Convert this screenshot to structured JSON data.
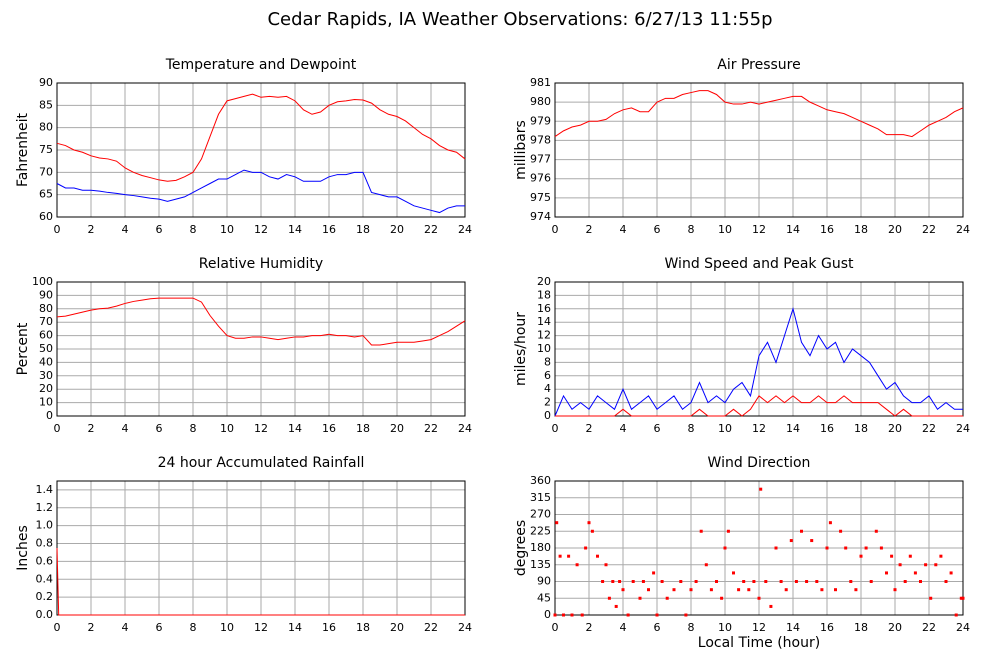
{
  "title": "Cedar Rapids, IA Weather Observations: 6/27/13 11:55p",
  "chart_data": [
    {
      "type": "line",
      "title": "Temperature and Dewpoint",
      "ylabel": "Fahrenheit",
      "grid": true,
      "x": [
        0,
        0.5,
        1,
        1.5,
        2,
        2.5,
        3,
        3.5,
        4,
        4.5,
        5,
        5.5,
        6,
        6.5,
        7,
        7.5,
        8,
        8.5,
        9,
        9.5,
        10,
        10.5,
        11,
        11.5,
        12,
        12.5,
        13,
        13.5,
        14,
        14.5,
        15,
        15.5,
        16,
        16.5,
        17,
        17.5,
        18,
        18.5,
        19,
        19.5,
        20,
        20.5,
        21,
        21.5,
        22,
        22.5,
        23,
        23.5,
        24
      ],
      "series": [
        {
          "color": "#ff0000",
          "values": [
            76.5,
            76,
            75,
            74.5,
            73.7,
            73.2,
            73,
            72.5,
            71,
            70,
            69.3,
            68.8,
            68.3,
            68,
            68.2,
            69,
            70,
            73,
            78,
            83,
            86,
            86.5,
            87,
            87.5,
            86.8,
            87,
            86.8,
            87,
            86,
            84,
            83,
            83.5,
            85,
            85.8,
            86,
            86.3,
            86.2,
            85.5,
            84,
            83,
            82.5,
            81.5,
            80,
            78.5,
            77.5,
            76,
            75,
            74.5,
            73
          ]
        },
        {
          "color": "#0000ff",
          "values": [
            67.5,
            66.5,
            66.5,
            66,
            66,
            65.8,
            65.5,
            65.3,
            65,
            64.8,
            64.5,
            64.2,
            64,
            63.5,
            64,
            64.5,
            65.5,
            66.5,
            67.5,
            68.5,
            68.5,
            69.5,
            70.5,
            70,
            70,
            69,
            68.5,
            69.5,
            69,
            68,
            68,
            68,
            69,
            69.5,
            69.5,
            70,
            70,
            65.5,
            65,
            64.5,
            64.5,
            63.5,
            62.5,
            62,
            61.5,
            61,
            62,
            62.5,
            62.5
          ]
        }
      ],
      "xlim": [
        0,
        24
      ],
      "xticks": [
        0,
        2,
        4,
        6,
        8,
        10,
        12,
        14,
        16,
        18,
        20,
        22,
        24
      ],
      "ylim": [
        60,
        90
      ],
      "yticks": [
        60,
        65,
        70,
        75,
        80,
        85,
        90
      ]
    },
    {
      "type": "line",
      "title": "Air Pressure",
      "ylabel": "millibars",
      "grid": true,
      "x": [
        0,
        0.5,
        1,
        1.5,
        2,
        2.5,
        3,
        3.5,
        4,
        4.5,
        5,
        5.5,
        6,
        6.5,
        7,
        7.5,
        8,
        8.5,
        9,
        9.5,
        10,
        10.5,
        11,
        11.5,
        12,
        12.5,
        13,
        13.5,
        14,
        14.5,
        15,
        15.5,
        16,
        16.5,
        17,
        17.5,
        18,
        18.5,
        19,
        19.5,
        20,
        20.5,
        21,
        21.5,
        22,
        22.5,
        23,
        23.5,
        24
      ],
      "series": [
        {
          "color": "#ff0000",
          "values": [
            978.2,
            978.5,
            978.7,
            978.8,
            979,
            979,
            979.1,
            979.4,
            979.6,
            979.7,
            979.5,
            979.5,
            980,
            980.2,
            980.2,
            980.4,
            980.5,
            980.6,
            980.6,
            980.4,
            980,
            979.9,
            979.9,
            980,
            979.9,
            980,
            980.1,
            980.2,
            980.3,
            980.3,
            980,
            979.8,
            979.6,
            979.5,
            979.4,
            979.2,
            979,
            978.8,
            978.6,
            978.3,
            978.3,
            978.3,
            978.2,
            978.5,
            978.8,
            979,
            979.2,
            979.5,
            979.7
          ]
        }
      ],
      "xlim": [
        0,
        24
      ],
      "xticks": [
        0,
        2,
        4,
        6,
        8,
        10,
        12,
        14,
        16,
        18,
        20,
        22,
        24
      ],
      "ylim": [
        974,
        981
      ],
      "yticks": [
        974,
        975,
        976,
        977,
        978,
        979,
        980,
        981
      ]
    },
    {
      "type": "line",
      "title": "Relative Humidity",
      "ylabel": "Percent",
      "grid": true,
      "x": [
        0,
        0.5,
        1,
        1.5,
        2,
        2.5,
        3,
        3.5,
        4,
        4.5,
        5,
        5.5,
        6,
        6.5,
        7,
        7.5,
        8,
        8.5,
        9,
        9.5,
        10,
        10.5,
        11,
        11.5,
        12,
        12.5,
        13,
        13.5,
        14,
        14.5,
        15,
        15.5,
        16,
        16.5,
        17,
        17.5,
        18,
        18.5,
        19,
        19.5,
        20,
        20.5,
        21,
        21.5,
        22,
        22.5,
        23,
        23.5,
        24
      ],
      "series": [
        {
          "color": "#ff0000",
          "values": [
            74,
            74.5,
            76,
            77.5,
            79,
            80,
            80.5,
            82,
            84,
            85.5,
            86.5,
            87.5,
            88,
            88,
            88,
            88,
            88,
            85,
            75,
            67,
            60,
            58,
            58,
            59,
            59,
            58,
            57,
            58,
            59,
            59,
            60,
            60,
            61,
            60,
            60,
            59,
            60,
            53,
            53,
            54,
            55,
            55,
            55,
            56,
            57,
            60,
            63,
            67,
            71
          ]
        }
      ],
      "xlim": [
        0,
        24
      ],
      "xticks": [
        0,
        2,
        4,
        6,
        8,
        10,
        12,
        14,
        16,
        18,
        20,
        22,
        24
      ],
      "ylim": [
        0,
        100
      ],
      "yticks": [
        0,
        10,
        20,
        30,
        40,
        50,
        60,
        70,
        80,
        90,
        100
      ]
    },
    {
      "type": "line",
      "title": "Wind Speed and Peak Gust",
      "ylabel": "miles/hour",
      "grid": true,
      "x": [
        0,
        0.5,
        1,
        1.5,
        2,
        2.5,
        3,
        3.5,
        4,
        4.5,
        5,
        5.5,
        6,
        6.5,
        7,
        7.5,
        8,
        8.5,
        9,
        9.5,
        10,
        10.5,
        11,
        11.5,
        12,
        12.5,
        13,
        13.5,
        14,
        14.5,
        15,
        15.5,
        16,
        16.5,
        17,
        17.5,
        18,
        18.5,
        19,
        19.5,
        20,
        20.5,
        21,
        21.5,
        22,
        22.5,
        23,
        23.5,
        24
      ],
      "series": [
        {
          "color": "#0000ff",
          "values": [
            0,
            3,
            1,
            2,
            1,
            3,
            2,
            1,
            4,
            1,
            2,
            3,
            1,
            2,
            3,
            1,
            2,
            5,
            2,
            3,
            2,
            4,
            5,
            3,
            9,
            11,
            8,
            12,
            16,
            11,
            9,
            12,
            10,
            11,
            8,
            10,
            9,
            8,
            6,
            4,
            5,
            3,
            2,
            2,
            3,
            1,
            2,
            1,
            1
          ]
        },
        {
          "color": "#ff0000",
          "values": [
            0,
            0,
            0,
            0,
            0,
            0,
            0,
            0,
            1,
            0,
            0,
            0,
            0,
            0,
            0,
            0,
            0,
            1,
            0,
            0,
            0,
            1,
            0,
            1,
            3,
            2,
            3,
            2,
            3,
            2,
            2,
            3,
            2,
            2,
            3,
            2,
            2,
            2,
            2,
            1,
            0,
            1,
            0,
            0,
            0,
            0,
            0,
            0,
            0
          ]
        }
      ],
      "xlim": [
        0,
        24
      ],
      "xticks": [
        0,
        2,
        4,
        6,
        8,
        10,
        12,
        14,
        16,
        18,
        20,
        22,
        24
      ],
      "ylim": [
        0,
        20
      ],
      "yticks": [
        0,
        2,
        4,
        6,
        8,
        10,
        12,
        14,
        16,
        18,
        20
      ]
    },
    {
      "type": "line",
      "title": "24 hour Accumulated Rainfall",
      "ylabel": "Inches",
      "grid": true,
      "x": [
        0,
        0.1,
        24
      ],
      "series": [
        {
          "color": "#ff0000",
          "values": [
            0.75,
            0,
            0
          ]
        }
      ],
      "xlim": [
        0,
        24
      ],
      "xticks": [
        0,
        2,
        4,
        6,
        8,
        10,
        12,
        14,
        16,
        18,
        20,
        22,
        24
      ],
      "ylim": [
        0,
        1.5
      ],
      "yticks": [
        {
          "value": 0,
          "label": "0.0"
        },
        0.2,
        0.4,
        0.6,
        0.8,
        {
          "value": 1,
          "label": "1.0"
        },
        1.2,
        1.4
      ]
    },
    {
      "type": "scatter",
      "title": "Wind Direction",
      "ylabel": "degrees",
      "xlabel": "Local Time (hour)",
      "grid": true,
      "color": "#ff0000",
      "x": [
        0,
        0.1,
        0.3,
        0.5,
        0.8,
        1,
        1.3,
        1.6,
        1.8,
        2,
        2.2,
        2.5,
        2.8,
        3,
        3.2,
        3.4,
        3.6,
        3.8,
        4,
        4.3,
        4.6,
        5,
        5.2,
        5.5,
        5.8,
        6,
        6.3,
        6.6,
        7,
        7.4,
        7.7,
        8,
        8.3,
        8.6,
        8.9,
        9.2,
        9.5,
        9.8,
        10,
        10.2,
        10.5,
        10.8,
        11.1,
        11.4,
        11.7,
        12,
        12.1,
        12.4,
        12.7,
        13,
        13.3,
        13.6,
        13.9,
        14.2,
        14.5,
        14.8,
        15.1,
        15.4,
        15.7,
        16,
        16.2,
        16.5,
        16.8,
        17.1,
        17.4,
        17.7,
        18,
        18.3,
        18.6,
        18.9,
        19.2,
        19.5,
        19.8,
        20,
        20.3,
        20.6,
        20.9,
        21.2,
        21.5,
        21.8,
        22.1,
        22.4,
        22.7,
        23,
        23.3,
        23.6,
        23.9,
        24
      ],
      "values": [
        0,
        248,
        158,
        0,
        158,
        0,
        135,
        0,
        180,
        248,
        225,
        158,
        90,
        135,
        45,
        90,
        23,
        90,
        68,
        0,
        90,
        45,
        90,
        68,
        113,
        0,
        90,
        45,
        68,
        90,
        0,
        68,
        90,
        225,
        135,
        68,
        90,
        45,
        180,
        225,
        113,
        68,
        90,
        68,
        90,
        45,
        338,
        90,
        23,
        180,
        90,
        68,
        200,
        90,
        225,
        90,
        200,
        90,
        68,
        180,
        248,
        68,
        225,
        180,
        90,
        68,
        158,
        180,
        90,
        225,
        180,
        113,
        158,
        68,
        135,
        90,
        158,
        113,
        90,
        135,
        45,
        135,
        158,
        90,
        113,
        0,
        45,
        45
      ],
      "xlim": [
        0,
        24
      ],
      "xticks": [
        0,
        2,
        4,
        6,
        8,
        10,
        12,
        14,
        16,
        18,
        20,
        22,
        24
      ],
      "ylim": [
        0,
        360
      ],
      "yticks": [
        0,
        45,
        90,
        135,
        180,
        225,
        270,
        315,
        360
      ]
    }
  ]
}
